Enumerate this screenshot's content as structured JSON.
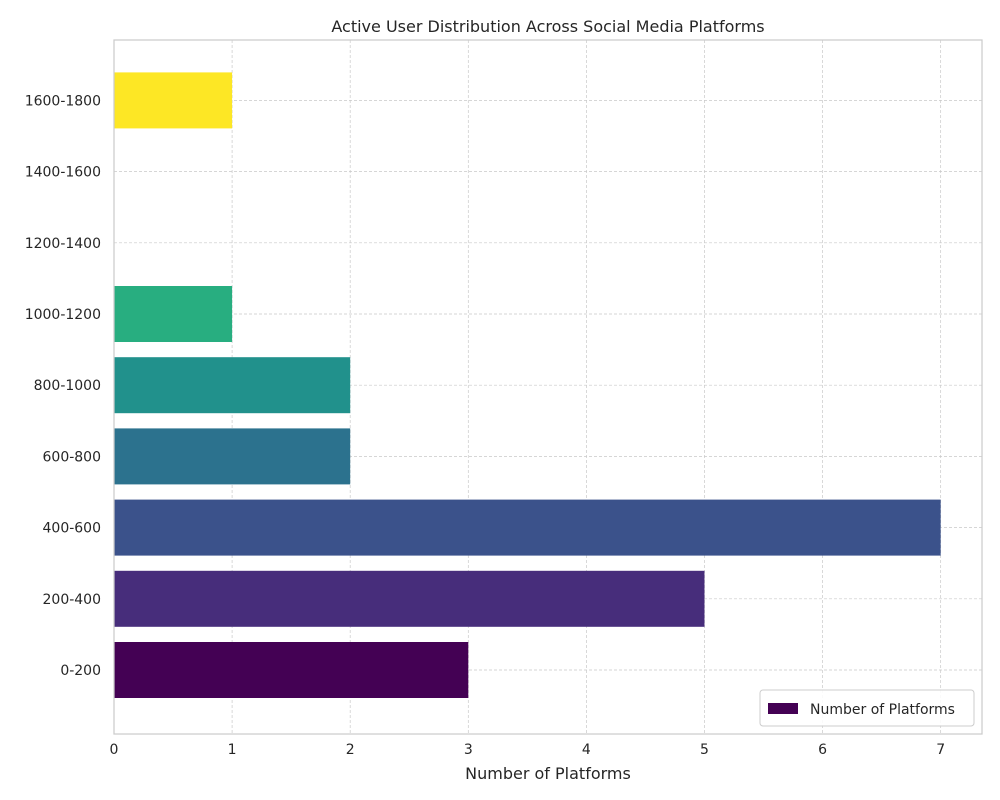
{
  "chart_data": {
    "type": "bar",
    "orientation": "horizontal",
    "title": "Active User Distribution Across Social Media Platforms",
    "xlabel": "Number of Platforms",
    "ylabel": "",
    "categories": [
      "0-200",
      "200-400",
      "400-600",
      "600-800",
      "800-1000",
      "1000-1200",
      "1200-1400",
      "1400-1600",
      "1600-1800"
    ],
    "series": [
      {
        "name": "Number of Platforms",
        "values": [
          3,
          5,
          7,
          2,
          2,
          1,
          0,
          0,
          1
        ]
      }
    ],
    "bar_colors": [
      "#440154",
      "#472d7b",
      "#3b528b",
      "#2c728e",
      "#21918c",
      "#28ae80",
      "#5ec962",
      "#addc30",
      "#fde725"
    ],
    "xlim": [
      0,
      7.35
    ],
    "xticks": [
      "0",
      "1",
      "2",
      "3",
      "4",
      "5",
      "6",
      "7"
    ],
    "grid": true,
    "legend_position": "lower-right"
  }
}
